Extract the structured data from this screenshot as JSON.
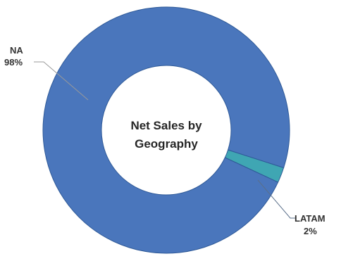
{
  "chart_data": {
    "type": "pie",
    "variant": "donut",
    "title": "Net Sales by Geography",
    "title_lines": [
      "Net Sales by",
      "Geography"
    ],
    "slices": [
      {
        "name": "NA",
        "percent_label": "98%",
        "value": 98,
        "color": "#4a76bc"
      },
      {
        "name": "LATAM",
        "percent_label": "2%",
        "value": 2,
        "color": "#3fa6b3"
      }
    ],
    "legend": "none",
    "data_labels": "outside-with-leader-lines"
  }
}
